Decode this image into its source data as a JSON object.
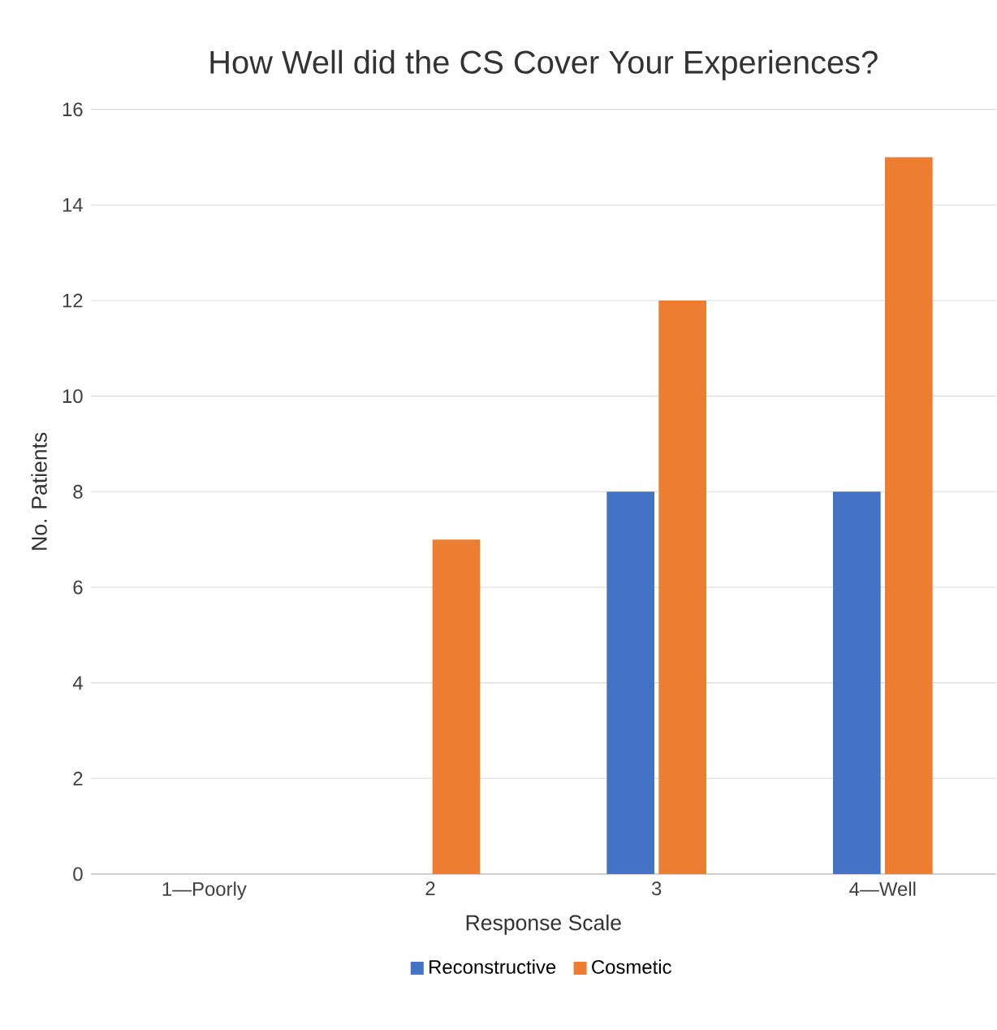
{
  "chart_data": {
    "type": "bar",
    "title": "How Well did the CS Cover Your Experiences?",
    "xlabel": "Response Scale",
    "ylabel": "No. Patients",
    "categories": [
      "1—Poorly",
      "2",
      "3",
      "4—Well"
    ],
    "series": [
      {
        "name": "Reconstructive",
        "color": "#4472c4",
        "values": [
          0,
          0,
          8,
          8
        ]
      },
      {
        "name": "Cosmetic",
        "color": "#ed7d31",
        "values": [
          0,
          7,
          12,
          15
        ]
      }
    ],
    "ylim": [
      0,
      16
    ],
    "yticks": [
      0,
      2,
      4,
      6,
      8,
      10,
      12,
      14,
      16
    ],
    "grid": "y",
    "legend": "bottom"
  }
}
